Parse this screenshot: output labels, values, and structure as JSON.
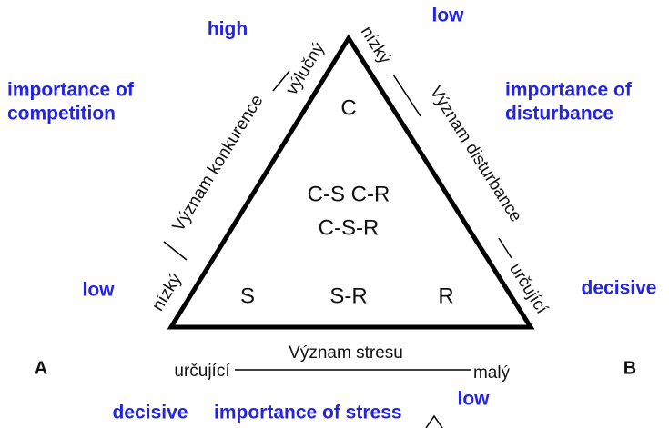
{
  "english": {
    "competition_high": "high",
    "disturbance_low": "low",
    "competition_title_1": "importance of",
    "competition_title_2": "competition",
    "disturbance_title_1": "importance of",
    "disturbance_title_2": "disturbance",
    "competition_low": "low",
    "disturbance_decisive": "decisive",
    "stress_decisive": "decisive",
    "stress_title": "importance of stress",
    "stress_low": "low"
  },
  "czech": {
    "competition_high": "výlučný",
    "competition_title": "Význam konkurence",
    "competition_low": "nízký",
    "disturbance_low": "nízký",
    "disturbance_title": "Význam disturbance",
    "disturbance_decisive": "určující",
    "stress_decisive": "určující",
    "stress_title": "Význam stresu",
    "stress_low": "malý"
  },
  "regions": [
    "C",
    "C-S C-R",
    "C-S-R",
    "S",
    "S-R",
    "R"
  ],
  "corners": [
    "A",
    "B"
  ]
}
